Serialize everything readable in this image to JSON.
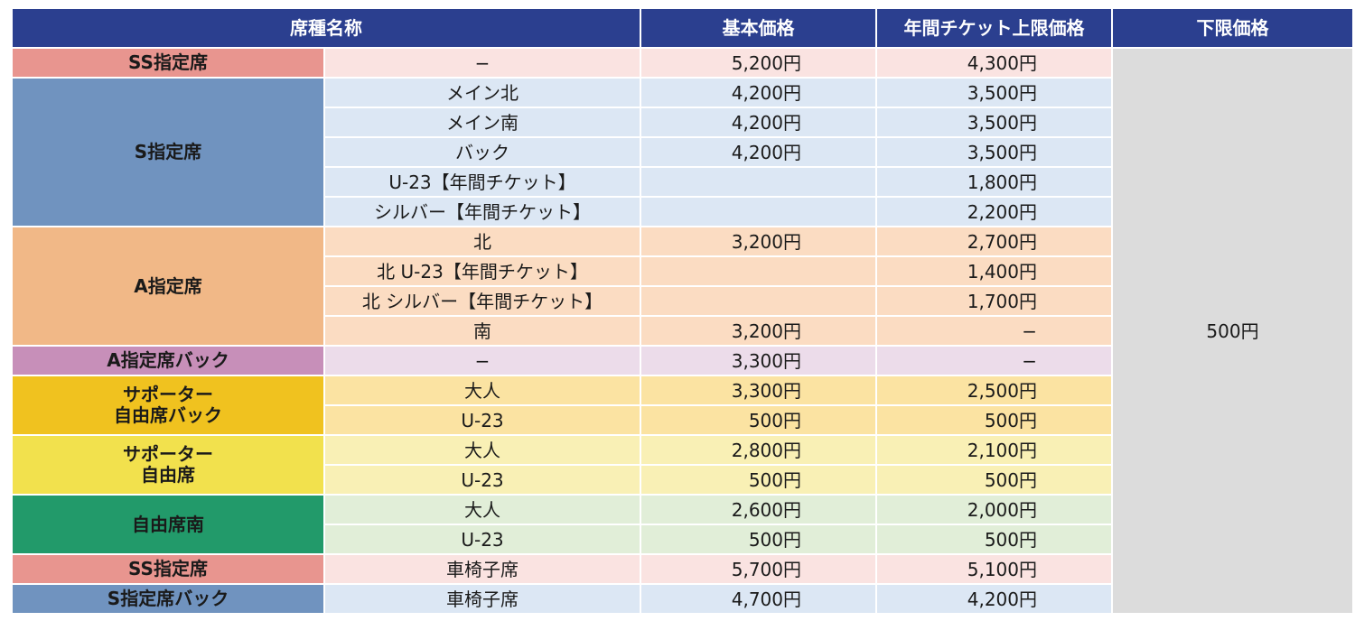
{
  "headers": {
    "seat_name": "席種名称",
    "base_price": "基本価格",
    "annual_upper": "年間チケット上限価格",
    "lower_limit": "下限価格"
  },
  "lower_limit_value": "500円",
  "categories": {
    "ss": "SS指定席",
    "s": "S指定席",
    "a": "A指定席",
    "ab": "A指定席バック",
    "sup1": [
      "サポーター",
      "自由席バック"
    ],
    "sup2": [
      "サポーター",
      "自由席"
    ],
    "free": "自由席南",
    "ss_wheel": "SS指定席",
    "sb_wheel": "S指定席バック"
  },
  "rows": [
    {
      "sub": "−",
      "base": "5,200円",
      "annual": "4,300円"
    },
    {
      "sub": "メイン北",
      "base": "4,200円",
      "annual": "3,500円"
    },
    {
      "sub": "メイン南",
      "base": "4,200円",
      "annual": "3,500円"
    },
    {
      "sub": "バック",
      "base": "4,200円",
      "annual": "3,500円"
    },
    {
      "sub": "U-23【年間チケット】",
      "base": "",
      "annual": "1,800円"
    },
    {
      "sub": "シルバー【年間チケット】",
      "base": "",
      "annual": "2,200円"
    },
    {
      "sub": "北",
      "base": "3,200円",
      "annual": "2,700円"
    },
    {
      "sub": "北 U-23【年間チケット】",
      "base": "",
      "annual": "1,400円"
    },
    {
      "sub": "北 シルバー【年間チケット】",
      "base": "",
      "annual": "1,700円"
    },
    {
      "sub": "南",
      "base": "3,200円",
      "annual": "−"
    },
    {
      "sub": "−",
      "base": "3,300円",
      "annual": "−"
    },
    {
      "sub": "大人",
      "base": "3,300円",
      "annual": "2,500円"
    },
    {
      "sub": "U-23",
      "base": "500円",
      "annual": "500円"
    },
    {
      "sub": "大人",
      "base": "2,800円",
      "annual": "2,100円"
    },
    {
      "sub": "U-23",
      "base": "500円",
      "annual": "500円"
    },
    {
      "sub": "大人",
      "base": "2,600円",
      "annual": "2,000円"
    },
    {
      "sub": "U-23",
      "base": "500円",
      "annual": "500円"
    },
    {
      "sub": "車椅子席",
      "base": "5,700円",
      "annual": "5,100円"
    },
    {
      "sub": "車椅子席",
      "base": "4,700円",
      "annual": "4,200円"
    }
  ]
}
